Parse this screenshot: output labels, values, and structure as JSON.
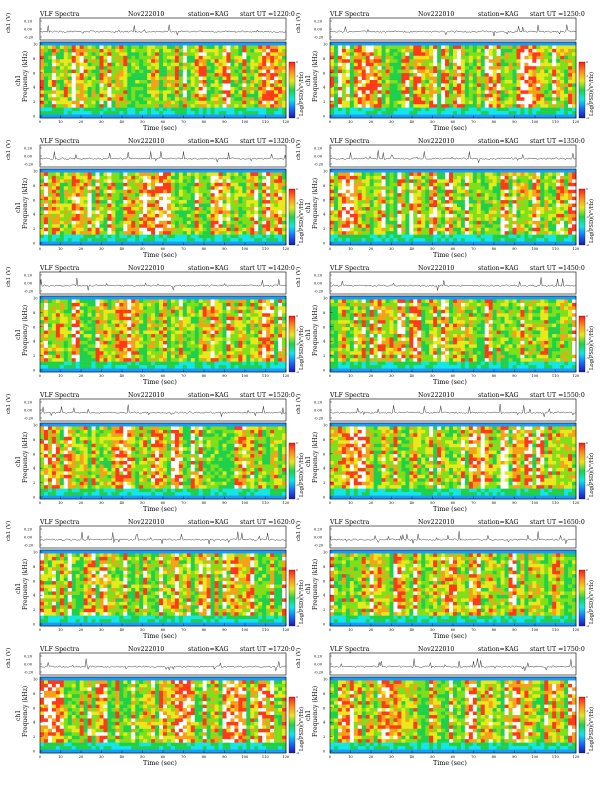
{
  "colors": {
    "background": "#ffffff",
    "axis": "#000000",
    "trace": "#333333",
    "spectrogram_palette": [
      "#1a9cff",
      "#13e6e6",
      "#1fd14a",
      "#7fe01a",
      "#e8e81a",
      "#f5a21a",
      "#ff3a1a",
      "#ffffff"
    ],
    "colorbar_palette": [
      "#1a1aa8",
      "#1a6cff",
      "#13e6e6",
      "#1fd14a",
      "#e8e81a",
      "#ff8a1a",
      "#ff1a1a"
    ]
  },
  "panel_labels": {
    "title": "VLF Spectra",
    "date": "Nov222010",
    "station": "station=KAG",
    "start_ut_prefix": "start  UT  =",
    "ch1_axis_label": "ch1 (V)",
    "ch1_ticks": [
      "0.20",
      "0.00",
      "-0.20"
    ],
    "freq_axis_label": "Frequency  (kHz)",
    "freq_panel_label": "ch1",
    "freq_ticks": [
      "0",
      "2",
      "4",
      "6",
      "8",
      "10"
    ],
    "x_axis_label": "Time  (sec)",
    "x_ticks": [
      "0",
      "10",
      "20",
      "30",
      "40",
      "50",
      "60",
      "70",
      "80",
      "90",
      "100",
      "110",
      "120"
    ],
    "colorbar_label": "Log(PSD)(V²/Hz)",
    "colorbar_ticks": [
      "0",
      "-1",
      "-2",
      "-3",
      "-4"
    ]
  },
  "chart_data": [
    {
      "type": "heatmap",
      "title": "VLF Spectra",
      "date": "Nov222010",
      "station": "station=KAG",
      "start_ut": "1220:0",
      "xlabel": "Time  (sec)",
      "ylabel": "Frequency  (kHz)",
      "xlim": [
        0,
        120
      ],
      "ylim": [
        0,
        10
      ],
      "colorbar_label": "Log(PSD)(V²/Hz)",
      "colorbar_range": [
        -4,
        0
      ],
      "trace_label": "ch1 (V)",
      "trace_ylim": [
        -0.2,
        0.2
      ]
    },
    {
      "type": "heatmap",
      "title": "VLF Spectra",
      "date": "Nov222010",
      "station": "station=KAG",
      "start_ut": "1250:0",
      "xlabel": "Time  (sec)",
      "ylabel": "Frequency  (kHz)",
      "xlim": [
        0,
        120
      ],
      "ylim": [
        0,
        10
      ],
      "colorbar_label": "Log(PSD)(V²/Hz)",
      "colorbar_range": [
        -4,
        0
      ],
      "trace_label": "ch1 (V)",
      "trace_ylim": [
        -0.2,
        0.2
      ]
    },
    {
      "type": "heatmap",
      "title": "VLF Spectra",
      "date": "Nov222010",
      "station": "station=KAG",
      "start_ut": "1320:0",
      "xlabel": "Time  (sec)",
      "ylabel": "Frequency  (kHz)",
      "xlim": [
        0,
        120
      ],
      "ylim": [
        0,
        10
      ],
      "colorbar_label": "Log(PSD)(V²/Hz)",
      "colorbar_range": [
        -4,
        0
      ],
      "trace_label": "ch1 (V)",
      "trace_ylim": [
        -0.2,
        0.2
      ]
    },
    {
      "type": "heatmap",
      "title": "VLF Spectra",
      "date": "Nov222010",
      "station": "station=KAG",
      "start_ut": "1350:0",
      "xlabel": "Time  (sec)",
      "ylabel": "Frequency  (kHz)",
      "xlim": [
        0,
        120
      ],
      "ylim": [
        0,
        10
      ],
      "colorbar_label": "Log(PSD)(V²/Hz)",
      "colorbar_range": [
        -4,
        0
      ],
      "trace_label": "ch1 (V)",
      "trace_ylim": [
        -0.2,
        0.2
      ]
    },
    {
      "type": "heatmap",
      "title": "VLF Spectra",
      "date": "Nov222010",
      "station": "station=KAG",
      "start_ut": "1420:0",
      "xlabel": "Time  (sec)",
      "ylabel": "Frequency  (kHz)",
      "xlim": [
        0,
        120
      ],
      "ylim": [
        0,
        10
      ],
      "colorbar_label": "Log(PSD)(V²/Hz)",
      "colorbar_range": [
        -4,
        0
      ],
      "trace_label": "ch1 (V)",
      "trace_ylim": [
        -0.2,
        0.2
      ]
    },
    {
      "type": "heatmap",
      "title": "VLF Spectra",
      "date": "Nov222010",
      "station": "station=KAG",
      "start_ut": "1450:0",
      "xlabel": "Time  (sec)",
      "ylabel": "Frequency  (kHz)",
      "xlim": [
        0,
        120
      ],
      "ylim": [
        0,
        10
      ],
      "colorbar_label": "Log(PSD)(V²/Hz)",
      "colorbar_range": [
        -4,
        0
      ],
      "trace_label": "ch1 (V)",
      "trace_ylim": [
        -0.2,
        0.2
      ]
    },
    {
      "type": "heatmap",
      "title": "VLF Spectra",
      "date": "Nov222010",
      "station": "station=KAG",
      "start_ut": "1520:0",
      "xlabel": "Time  (sec)",
      "ylabel": "Frequency  (kHz)",
      "xlim": [
        0,
        120
      ],
      "ylim": [
        0,
        10
      ],
      "colorbar_label": "Log(PSD)(V²/Hz)",
      "colorbar_range": [
        -4,
        0
      ],
      "trace_label": "ch1 (V)",
      "trace_ylim": [
        -0.2,
        0.2
      ]
    },
    {
      "type": "heatmap",
      "title": "VLF Spectra",
      "date": "Nov222010",
      "station": "station=KAG",
      "start_ut": "1550:0",
      "xlabel": "Time  (sec)",
      "ylabel": "Frequency  (kHz)",
      "xlim": [
        0,
        120
      ],
      "ylim": [
        0,
        10
      ],
      "colorbar_label": "Log(PSD)(V²/Hz)",
      "colorbar_range": [
        -4,
        0
      ],
      "trace_label": "ch1 (V)",
      "trace_ylim": [
        -0.2,
        0.2
      ]
    },
    {
      "type": "heatmap",
      "title": "VLF Spectra",
      "date": "Nov222010",
      "station": "station=KAG",
      "start_ut": "1620:0",
      "xlabel": "Time  (sec)",
      "ylabel": "Frequency  (kHz)",
      "xlim": [
        0,
        120
      ],
      "ylim": [
        0,
        10
      ],
      "colorbar_label": "Log(PSD)(V²/Hz)",
      "colorbar_range": [
        -4,
        0
      ],
      "trace_label": "ch1 (V)",
      "trace_ylim": [
        -0.2,
        0.2
      ]
    },
    {
      "type": "heatmap",
      "title": "VLF Spectra",
      "date": "Nov222010",
      "station": "station=KAG",
      "start_ut": "1650:0",
      "xlabel": "Time  (sec)",
      "ylabel": "Frequency  (kHz)",
      "xlim": [
        0,
        120
      ],
      "ylim": [
        0,
        10
      ],
      "colorbar_label": "Log(PSD)(V²/Hz)",
      "colorbar_range": [
        -4,
        0
      ],
      "trace_label": "ch1 (V)",
      "trace_ylim": [
        -0.2,
        0.2
      ]
    },
    {
      "type": "heatmap",
      "title": "VLF Spectra",
      "date": "Nov222010",
      "station": "station=KAG",
      "start_ut": "1720:0",
      "xlabel": "Time  (sec)",
      "ylabel": "Frequency  (kHz)",
      "xlim": [
        0,
        120
      ],
      "ylim": [
        0,
        10
      ],
      "colorbar_label": "Log(PSD)(V²/Hz)",
      "colorbar_range": [
        -4,
        0
      ],
      "trace_label": "ch1 (V)",
      "trace_ylim": [
        -0.2,
        0.2
      ]
    },
    {
      "type": "heatmap",
      "title": "VLF Spectra",
      "date": "Nov222010",
      "station": "station=KAG",
      "start_ut": "1750:0",
      "xlabel": "Time  (sec)",
      "ylabel": "Frequency  (kHz)",
      "xlim": [
        0,
        120
      ],
      "ylim": [
        0,
        10
      ],
      "colorbar_label": "Log(PSD)(V²/Hz)",
      "colorbar_range": [
        -4,
        0
      ],
      "trace_label": "ch1 (V)",
      "trace_ylim": [
        -0.2,
        0.2
      ]
    }
  ]
}
